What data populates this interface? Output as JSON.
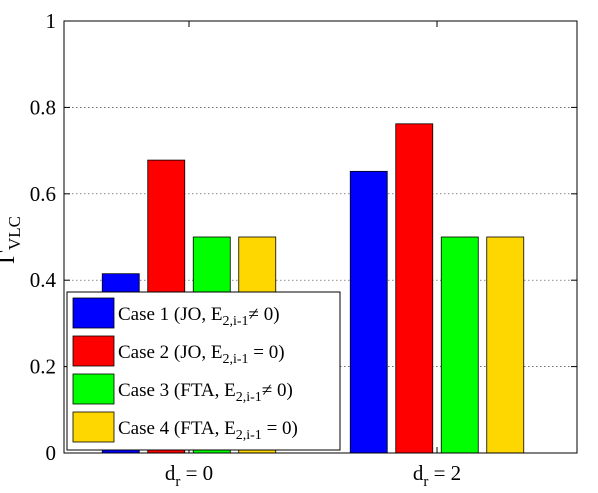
{
  "chart_data": {
    "type": "bar",
    "categories": [
      "0",
      "2"
    ],
    "category_prefix": "d",
    "category_sub": "r",
    "category_eq": " = ",
    "ylabel_main": "Γ",
    "ylabel_sub": "VLC",
    "ylim": [
      0,
      1
    ],
    "yticks": [
      "0",
      "0.2",
      "0.4",
      "0.6",
      "0.8",
      "1"
    ],
    "ytick_values": [
      0,
      0.2,
      0.4,
      0.6,
      0.8,
      1
    ],
    "grid": true,
    "legend_position": "bottom-left",
    "series": [
      {
        "name": "Case 1 (JO, E2,i-1 ≠ 0)",
        "label_pre": "Case 1 (JO, E",
        "label_sub": "2,i-1",
        "label_post": "≠ 0)",
        "color": "#0000ff",
        "values": [
          0.415,
          0.652
        ]
      },
      {
        "name": "Case 2 (JO, E2,i-1 = 0)",
        "label_pre": "Case 2 (JO, E",
        "label_sub": "2,i-1",
        "label_post": " = 0)",
        "color": "#ff0000",
        "values": [
          0.678,
          0.762
        ]
      },
      {
        "name": "Case 3 (FTA, E2,i-1 ≠ 0)",
        "label_pre": "Case 3 (FTA, E",
        "label_sub": "2,i-1",
        "label_post": "≠ 0)",
        "color": "#00ff00",
        "values": [
          0.5,
          0.5
        ]
      },
      {
        "name": "Case 4 (FTA, E2,i-1 = 0)",
        "label_pre": "Case 4 (FTA, E",
        "label_sub": "2,i-1",
        "label_post": " = 0)",
        "color": "#ffd700",
        "values": [
          0.5,
          0.5
        ]
      }
    ]
  }
}
